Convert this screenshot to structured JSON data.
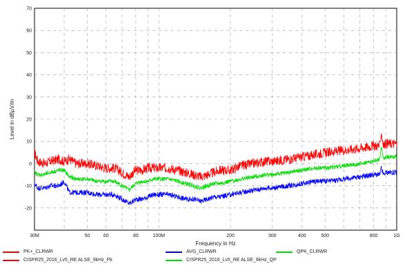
{
  "chart_data": {
    "type": "line",
    "ylabel": "Level in dBµV/m",
    "xlabel": "Frequency in Hz",
    "x_scale": "log",
    "ylim": [
      -30,
      70
    ],
    "xlim_hz": [
      30000000,
      1000000000
    ],
    "y_ticks": [
      -20,
      -10,
      0,
      10,
      20,
      30,
      40,
      50,
      60,
      70
    ],
    "x_ticks": [
      {
        "label": "30M",
        "hz": 30000000
      },
      {
        "label": "50",
        "hz": 50000000
      },
      {
        "label": "60",
        "hz": 60000000
      },
      {
        "label": "80",
        "hz": 80000000
      },
      {
        "label": "100M",
        "hz": 100000000
      },
      {
        "label": "200",
        "hz": 200000000
      },
      {
        "label": "300",
        "hz": 300000000
      },
      {
        "label": "400",
        "hz": 400000000
      },
      {
        "label": "500",
        "hz": 500000000
      },
      {
        "label": "800",
        "hz": 800000000
      },
      {
        "label": "1G",
        "hz": 1000000000
      }
    ],
    "grid": true,
    "series": [
      {
        "name": "PK+_CLRWR",
        "color": "#ff0000",
        "x_mhz": [
          30,
          31,
          33,
          35,
          38,
          40,
          42,
          45,
          48,
          50,
          55,
          60,
          65,
          70,
          75,
          78,
          80,
          85,
          90,
          95,
          100,
          110,
          120,
          130,
          140,
          150,
          160,
          170,
          180,
          200,
          220,
          250,
          280,
          300,
          350,
          400,
          450,
          500,
          600,
          700,
          800,
          850,
          860,
          880,
          900,
          950,
          1000
        ],
        "y": [
          5,
          1,
          0,
          1,
          2,
          1,
          2,
          0,
          0,
          0,
          -1,
          -2,
          -2,
          -4,
          -6,
          -4,
          -3,
          -3,
          -2,
          -2,
          -2,
          -2,
          -3,
          -4,
          -5,
          -6,
          -5,
          -4,
          -3,
          -3,
          -1,
          0,
          1,
          1,
          2,
          3,
          4,
          5,
          6,
          7,
          8,
          8,
          14,
          8,
          9,
          9,
          9
        ]
      },
      {
        "name": "AVG_CLRWR",
        "color": "#0000ff",
        "x_mhz": [
          30,
          31,
          33,
          35,
          38,
          40,
          42,
          45,
          48,
          50,
          55,
          60,
          65,
          70,
          75,
          78,
          80,
          85,
          90,
          95,
          100,
          110,
          120,
          130,
          140,
          150,
          160,
          170,
          180,
          200,
          220,
          250,
          280,
          300,
          350,
          400,
          450,
          500,
          600,
          700,
          800,
          850,
          860,
          880,
          900,
          950,
          1000
        ],
        "y": [
          -9,
          -11,
          -11,
          -10,
          -10,
          -8,
          -13,
          -13,
          -13,
          -13,
          -14,
          -14,
          -14,
          -16,
          -18,
          -17,
          -16,
          -16,
          -15,
          -14,
          -14,
          -14,
          -15,
          -16,
          -16,
          -17,
          -16,
          -15,
          -15,
          -14,
          -13,
          -12,
          -11,
          -11,
          -10,
          -9,
          -8,
          -8,
          -7,
          -6,
          -5,
          -5,
          -2,
          -5,
          -4,
          -4,
          -4
        ]
      },
      {
        "name": "QPK_CLRWR",
        "color": "#00dd00",
        "x_mhz": [
          30,
          31,
          33,
          35,
          38,
          40,
          42,
          45,
          48,
          50,
          55,
          60,
          65,
          70,
          75,
          78,
          80,
          85,
          90,
          95,
          100,
          110,
          120,
          130,
          140,
          150,
          160,
          170,
          180,
          200,
          220,
          250,
          280,
          300,
          350,
          400,
          450,
          500,
          600,
          700,
          800,
          850,
          860,
          880,
          900,
          950,
          1000
        ],
        "y": [
          -4,
          -5,
          -5,
          -4,
          -3,
          -3,
          -6,
          -7,
          -7,
          -7,
          -8,
          -8,
          -8,
          -10,
          -12,
          -10,
          -9,
          -8,
          -8,
          -7,
          -7,
          -7,
          -8,
          -9,
          -10,
          -11,
          -10,
          -9,
          -9,
          -8,
          -7,
          -6,
          -5,
          -5,
          -4,
          -3,
          -2,
          -2,
          -1,
          0,
          1,
          2,
          8,
          2,
          3,
          3,
          3
        ]
      }
    ],
    "legend_placement": "bottom",
    "legend": [
      {
        "label": "PK+_CLRWR",
        "color": "#ff0000"
      },
      {
        "label": "AVG_CLRWR",
        "color": "#0000ff"
      },
      {
        "label": "QPK_CLRWR",
        "color": "#00dd00"
      },
      {
        "label": "CISPR25_2016_Lv5_RE ALSE_9kHz_Pk",
        "color": "#ff0000"
      },
      {
        "label": "CISPR25_2016_Lv5_RE ALSE_9kHz_QP",
        "color": "#00dd00"
      }
    ]
  }
}
